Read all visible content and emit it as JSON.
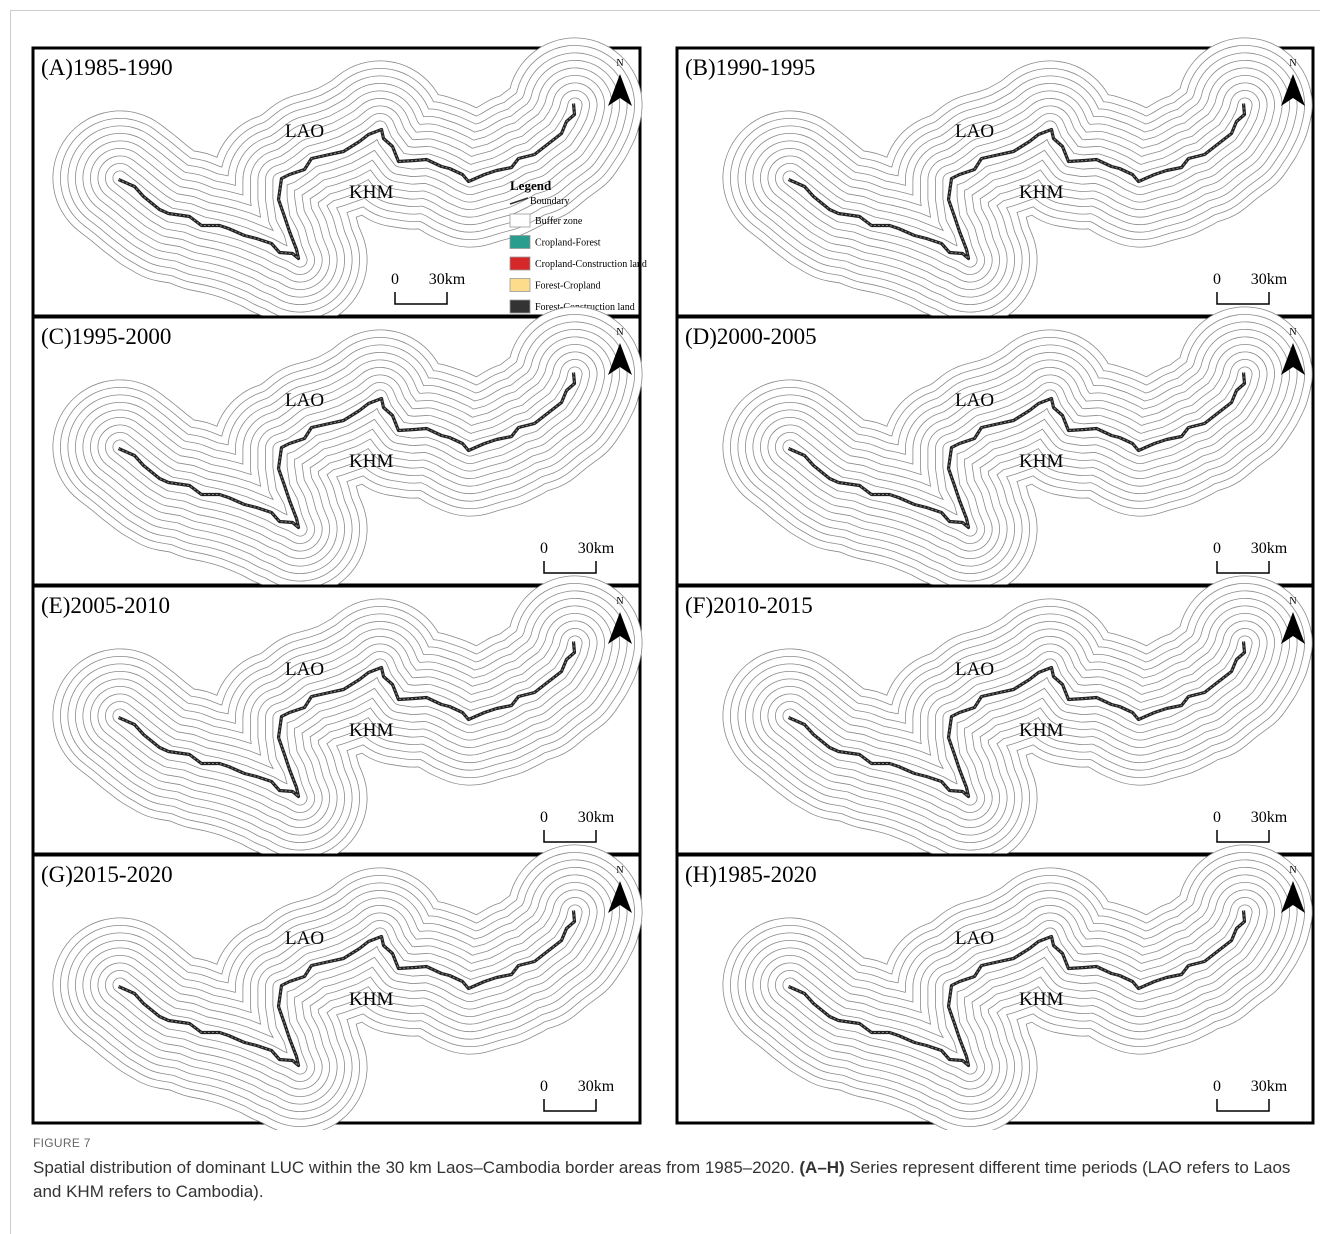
{
  "figure": {
    "panels": [
      {
        "title": "(A)1985-1990",
        "lao": "LAO",
        "khm": "KHM",
        "north": "N",
        "scale_start": "0",
        "scale_end": "30km"
      },
      {
        "title": "(B)1990-1995",
        "lao": "LAO",
        "khm": "KHM",
        "north": "N",
        "scale_start": "0",
        "scale_end": "30km"
      },
      {
        "title": "(C)1995-2000",
        "lao": "LAO",
        "khm": "KHM",
        "north": "N",
        "scale_start": "0",
        "scale_end": "30km"
      },
      {
        "title": "(D)2000-2005",
        "lao": "LAO",
        "khm": "KHM",
        "north": "N",
        "scale_start": "0",
        "scale_end": "30km"
      },
      {
        "title": "(E)2005-2010",
        "lao": "LAO",
        "khm": "KHM",
        "north": "N",
        "scale_start": "0",
        "scale_end": "30km"
      },
      {
        "title": "(F)2010-2015",
        "lao": "LAO",
        "khm": "KHM",
        "north": "N",
        "scale_start": "0",
        "scale_end": "30km"
      },
      {
        "title": "(G)2015-2020",
        "lao": "LAO",
        "khm": "KHM",
        "north": "N",
        "scale_start": "0",
        "scale_end": "30km"
      },
      {
        "title": "(H)1985-2020",
        "lao": "LAO",
        "khm": "KHM",
        "north": "N",
        "scale_start": "0",
        "scale_end": "30km"
      }
    ],
    "legend": {
      "title": "Legend",
      "boundary": "Boundary",
      "items": [
        {
          "label": "Buffer zone",
          "color": "#ffffff"
        },
        {
          "label": "Cropland-Forest",
          "color": "#2a9d8f"
        },
        {
          "label": "Cropland-Construction land",
          "color": "#d62828"
        },
        {
          "label": "Forest-Cropland",
          "color": "#fddc8c"
        },
        {
          "label": "Forest-Construction land",
          "color": "#333333"
        }
      ]
    },
    "caption": {
      "label": "FIGURE 7",
      "text_before": "Spatial distribution of dominant LUC within the 30 km Laos–Cambodia border areas from 1985–2020. ",
      "text_bold": "(A–H)",
      "text_after": " Series represent different time periods (LAO refers to Laos and KHM refers to Cambodia)."
    }
  }
}
